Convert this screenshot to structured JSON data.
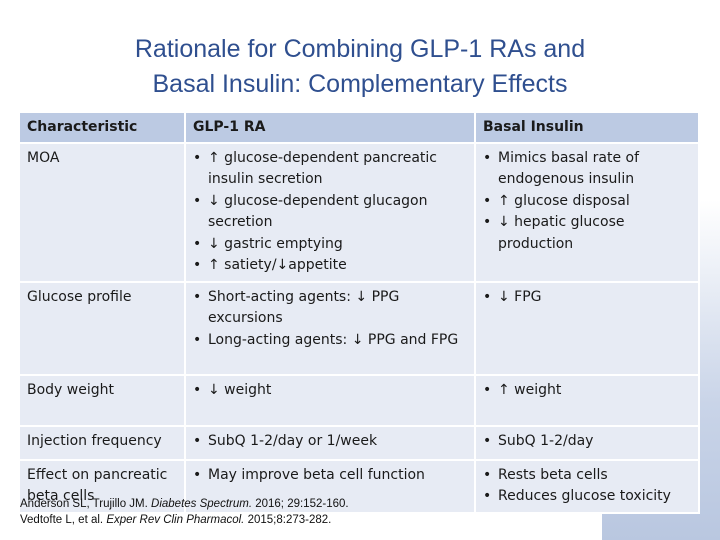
{
  "slide": {
    "title_line1": "Rationale for Combining GLP-1 RAs and",
    "title_line2": "Basal Insulin: Complementary Effects"
  },
  "table": {
    "headers": [
      "Characteristic",
      "GLP-1 RA",
      "Basal Insulin"
    ],
    "rows": [
      {
        "label": "MOA",
        "glp1": [
          "↑ glucose-dependent pancreatic insulin secretion",
          "↓ glucose-dependent glucagon secretion",
          "↓ gastric emptying",
          "↑ satiety/↓appetite"
        ],
        "basal": [
          "Mimics basal rate of endogenous insulin",
          "↑ glucose disposal",
          "↓ hepatic glucose production"
        ]
      },
      {
        "label": "Glucose profile",
        "glp1": [
          "Short-acting agents: ↓ PPG excursions",
          "Long-acting agents: ↓ PPG and FPG"
        ],
        "basal": [
          "↓ FPG"
        ]
      },
      {
        "label": "Body weight",
        "glp1": [
          "↓ weight"
        ],
        "basal": [
          "↑ weight"
        ]
      },
      {
        "label": "Injection frequency",
        "glp1": [
          "SubQ 1-2/day or 1/week"
        ],
        "basal": [
          "SubQ 1-2/day"
        ]
      },
      {
        "label": "Effect on pancreatic beta cells",
        "glp1": [
          "May improve beta cell function"
        ],
        "basal": [
          "Rests beta cells",
          "Reduces glucose toxicity"
        ]
      }
    ]
  },
  "references": {
    "ref1_authors": "Anderson SL, Trujillo JM. ",
    "ref1_journal": "Diabetes Spectrum.",
    "ref1_rest": " 2016; 29:152-160.",
    "ref2_authors": "Vedtofte L, et al. ",
    "ref2_journal": "Exper Rev Clin Pharmacol.",
    "ref2_rest": " 2015;8:273-282."
  }
}
